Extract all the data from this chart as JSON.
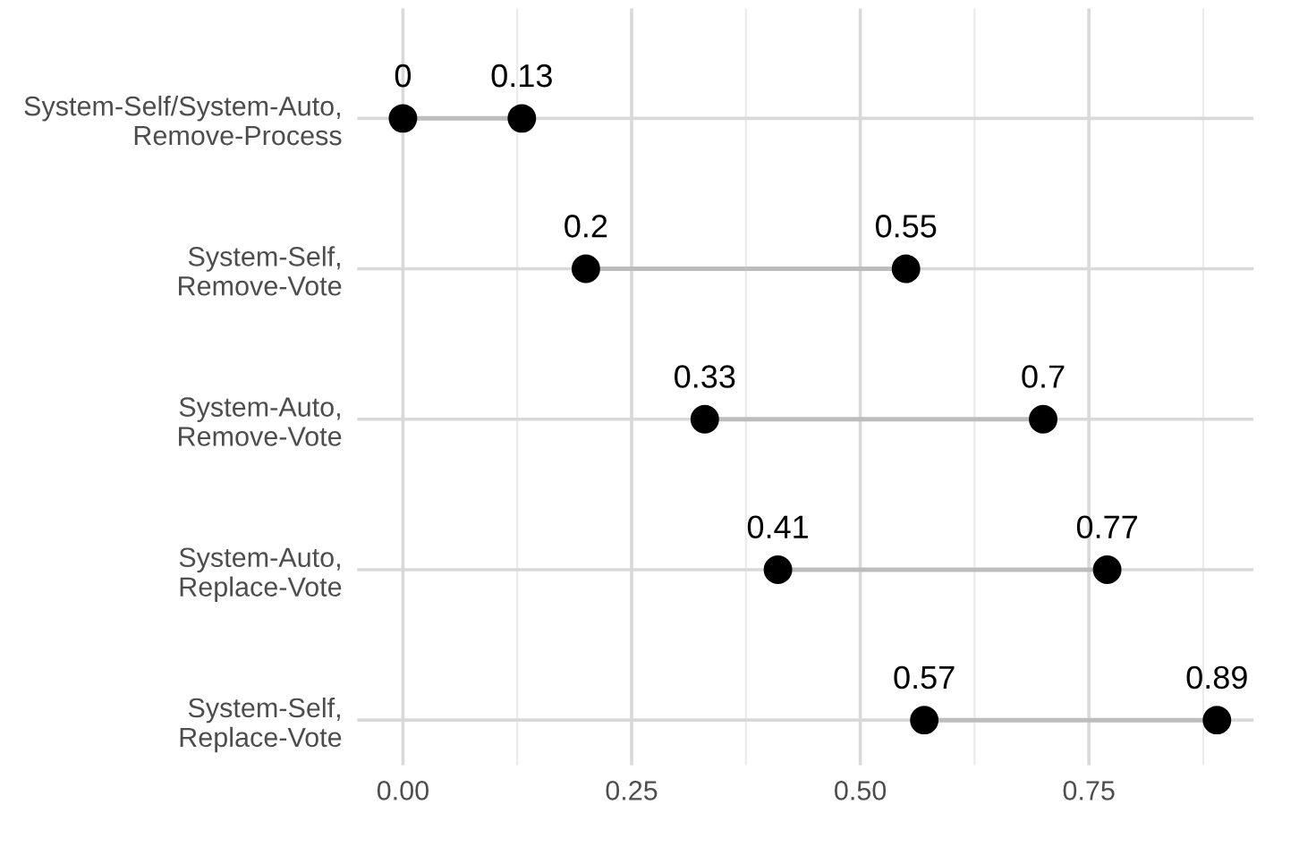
{
  "chart_data": {
    "type": "scatter",
    "orientation": "horizontal",
    "categories": [
      "System-Self/System-Auto,\nRemove-Process",
      "System-Self,\nRemove-Vote",
      "System-Auto,\nRemove-Vote",
      "System-Auto,\nReplace-Vote",
      "System-Self,\nReplace-Vote"
    ],
    "series": [
      {
        "color": "#000000",
        "values": [
          0,
          0.2,
          0.33,
          0.41,
          0.57
        ]
      },
      {
        "color": "#000000",
        "values": [
          0.13,
          0.55,
          0.7,
          0.77,
          0.89
        ]
      }
    ],
    "xlim": [
      -0.05,
      0.93
    ],
    "xticks": [
      {
        "value": 0,
        "label": "0.00"
      },
      {
        "value": 0.25,
        "label": "0.25"
      },
      {
        "value": 0.5,
        "label": "0.50"
      },
      {
        "value": 0.75,
        "label": "0.75"
      }
    ],
    "data_labels": true,
    "grid": true,
    "marker": "circle"
  }
}
